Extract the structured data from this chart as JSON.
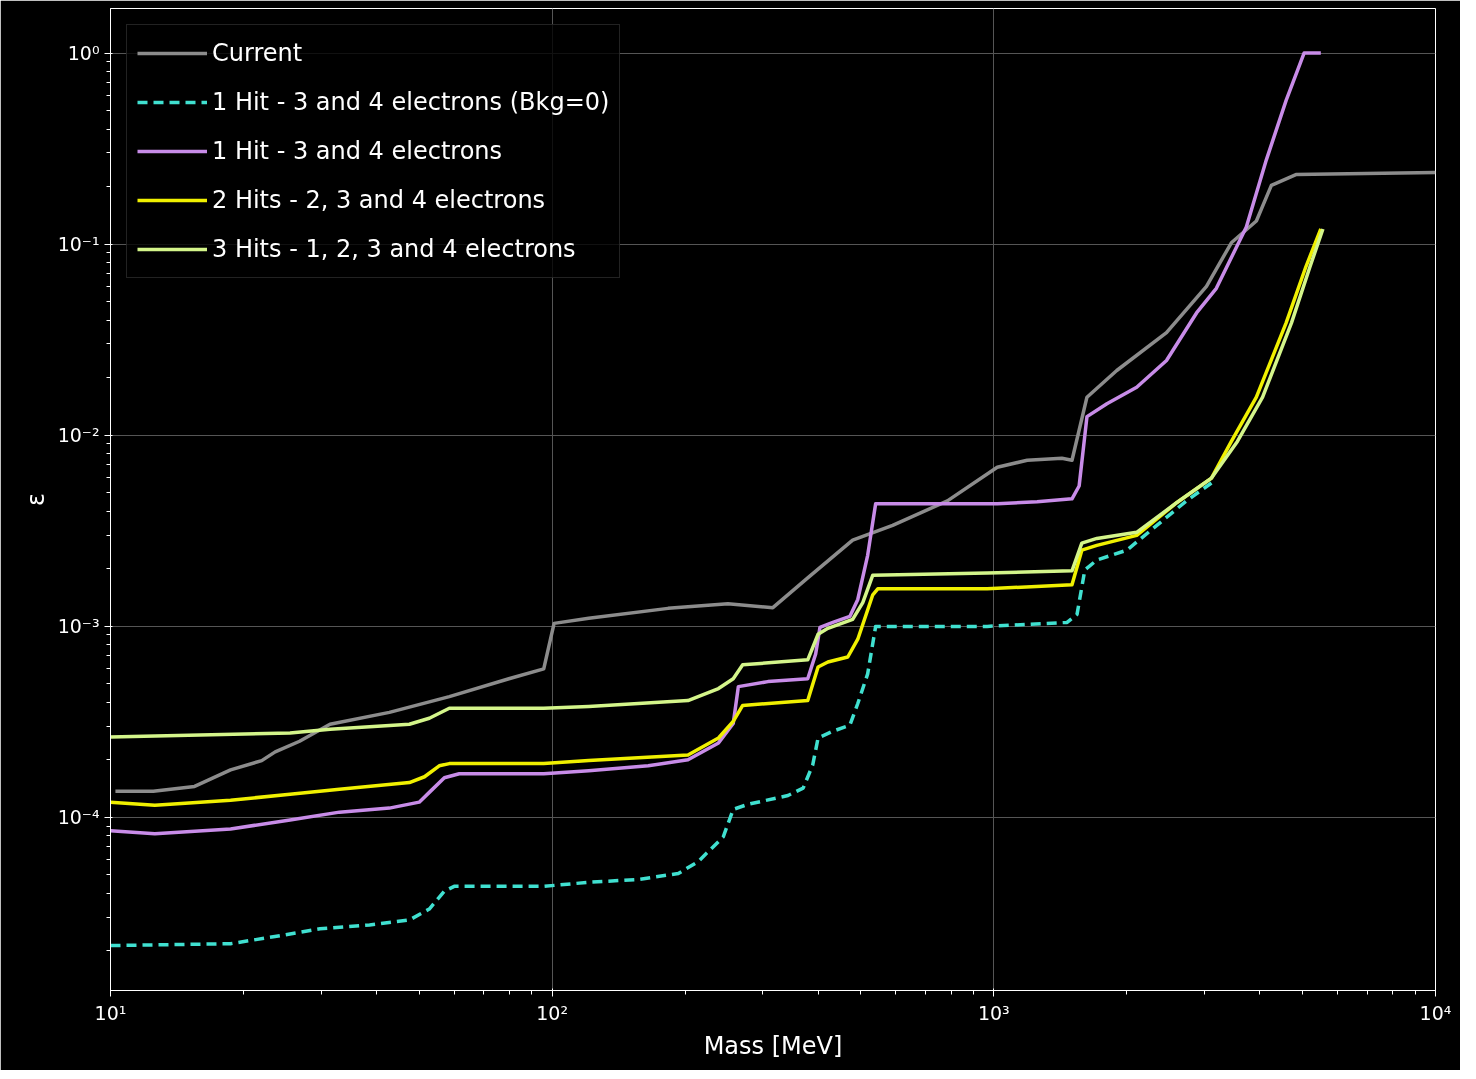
{
  "chart_data": {
    "type": "line",
    "xlabel": "Mass [MeV]",
    "ylabel": "ε",
    "log": "xy",
    "grid": true,
    "legend": "top left",
    "xlim": [
      10,
      10000
    ],
    "ylim": [
      1.24e-05,
      1.71
    ],
    "xticks": [
      {
        "value": 10,
        "label": "10¹"
      },
      {
        "value": 100,
        "label": "10²"
      },
      {
        "value": 1000,
        "label": "10³"
      },
      {
        "value": 10000,
        "label": "10⁴"
      }
    ],
    "yticks": [
      {
        "value": 0.0001,
        "label": "10⁻⁴"
      },
      {
        "value": 0.001,
        "label": "10⁻³"
      },
      {
        "value": 0.01,
        "label": "10⁻²"
      },
      {
        "value": 0.1,
        "label": "10⁻¹"
      },
      {
        "value": 1,
        "label": "10⁰"
      }
    ],
    "series": [
      {
        "name": "Current",
        "color": "#8c8c8c",
        "line_style": "solid",
        "x": [
          10.26,
          12.5,
          15.5,
          18.7,
          22.0,
          23.6,
          26.8,
          31.4,
          42.8,
          58.5,
          79.8,
          95.7,
          101,
          121,
          183,
          250,
          316,
          379,
          479,
          590,
          785,
          1018,
          1190,
          1426,
          1503,
          1625,
          1898,
          2460,
          3030,
          3450,
          3930,
          4250,
          4830,
          10000
        ],
        "values": [
          0.000137,
          0.000137,
          0.000145,
          0.000177,
          0.000198,
          0.00022,
          0.00025,
          0.000307,
          0.000354,
          0.000428,
          0.000531,
          0.000598,
          0.001035,
          0.0011,
          0.00124,
          0.00131,
          0.00125,
          0.00179,
          0.00282,
          0.00337,
          0.00453,
          0.00679,
          0.00739,
          0.00757,
          0.00739,
          0.0158,
          0.0218,
          0.0344,
          0.0601,
          0.1016,
          0.132,
          0.203,
          0.231,
          0.237
        ]
      },
      {
        "name": "1 Hit - 3 and 4 electrons (Bkg=0)",
        "color": "#40e0d0",
        "line_style": "dashed",
        "x": [
          10,
          18.7,
          24.2,
          29.8,
          38.6,
          47.5,
          52.7,
          57.0,
          60.0,
          95.7,
          121,
          157,
          193,
          214,
          244,
          257,
          278,
          342,
          370,
          389,
          400,
          432,
          472,
          492,
          518,
          540,
          966,
          1465,
          1543,
          1607,
          1711,
          2000,
          2339,
          2730,
          3110
        ],
        "values": [
          2.13e-05,
          2.18e-05,
          2.4e-05,
          2.61e-05,
          2.73e-05,
          2.9e-05,
          3.31e-05,
          4.1e-05,
          4.35e-05,
          4.35e-05,
          4.57e-05,
          4.73e-05,
          5.08e-05,
          5.86e-05,
          7.9e-05,
          0.00011,
          0.000117,
          0.00013,
          0.000142,
          0.000188,
          0.00026,
          0.000282,
          0.000303,
          0.000394,
          0.000563,
          0.000998,
          0.000998,
          0.001047,
          0.001153,
          0.00197,
          0.00222,
          0.0025,
          0.00337,
          0.00453,
          0.00562
        ]
      },
      {
        "name": "1 Hit - 3 and 4 electrons",
        "color": "#c88ce8",
        "line_style": "solid",
        "x": [
          10,
          12.6,
          18.7,
          25.5,
          33.0,
          42.8,
          50.0,
          52.7,
          57.0,
          61.6,
          95.7,
          121,
          165,
          203,
          238,
          257,
          264,
          308,
          379,
          395,
          404,
          432,
          472,
          492,
          518,
          540,
          745,
          1018,
          1253,
          1503,
          1560,
          1625,
          1803,
          2106,
          2460,
          2877,
          3190,
          3730,
          4140,
          4590,
          5040,
          5500
        ],
        "values": [
          8.49e-05,
          8.19e-05,
          8.69e-05,
          9.68e-05,
          0.0001064,
          0.0001117,
          0.00012,
          0.000135,
          0.000161,
          0.000169,
          0.000169,
          0.000175,
          0.000186,
          0.0002,
          0.000245,
          0.00031,
          0.000483,
          0.000513,
          0.000531,
          0.000716,
          0.000987,
          0.001047,
          0.001125,
          0.00138,
          0.00235,
          0.00438,
          0.00438,
          0.00438,
          0.00448,
          0.00464,
          0.00542,
          0.0125,
          0.0146,
          0.0178,
          0.0246,
          0.0436,
          0.0587,
          0.123,
          0.276,
          0.565,
          1.0,
          1.0
        ]
      },
      {
        "name": "2 Hits - 2, 3 and 4 electrons",
        "color": "#f0f000",
        "line_style": "solid",
        "x": [
          10,
          12.6,
          18.7,
          25.5,
          33.0,
          47.5,
          51.4,
          55.5,
          58.5,
          95.7,
          121,
          203,
          238,
          257,
          270,
          379,
          400,
          421,
          467,
          492,
          532,
          546,
          966,
          1503,
          1582,
          1711,
          2106,
          2594,
          3110,
          3450,
          3930,
          4590,
          5090,
          5500
        ],
        "values": [
          0.00012,
          0.0001156,
          0.0001228,
          0.000132,
          0.00014,
          0.000152,
          0.000163,
          0.000186,
          0.000191,
          0.000191,
          0.000198,
          0.000212,
          0.00026,
          0.000318,
          0.000385,
          0.000408,
          0.000612,
          0.00065,
          0.00069,
          0.000855,
          0.00146,
          0.00157,
          0.00157,
          0.00165,
          0.0025,
          0.00265,
          0.00299,
          0.00443,
          0.00596,
          0.00927,
          0.0158,
          0.0387,
          0.0763,
          0.12
        ]
      },
      {
        "name": "3 Hits - 1, 2, 3 and 4 electrons",
        "color": "#d4f58a",
        "line_style": "solid",
        "x": [
          10,
          25.5,
          31.4,
          47.5,
          52.7,
          58.5,
          95.7,
          121,
          203,
          238,
          257,
          270,
          379,
          400,
          421,
          479,
          505,
          532,
          966,
          1503,
          1582,
          1711,
          2106,
          2594,
          3110,
          3560,
          4060,
          4720,
          5200,
          5560
        ],
        "values": [
          0.000263,
          0.000276,
          0.000289,
          0.000307,
          0.00033,
          0.000372,
          0.000372,
          0.00038,
          0.000408,
          0.000472,
          0.000531,
          0.000628,
          0.000667,
          0.000908,
          0.000975,
          0.001086,
          0.00133,
          0.00185,
          0.0019,
          0.00195,
          0.00272,
          0.00288,
          0.0031,
          0.00443,
          0.00596,
          0.00927,
          0.0158,
          0.0387,
          0.0763,
          0.12
        ]
      }
    ]
  }
}
